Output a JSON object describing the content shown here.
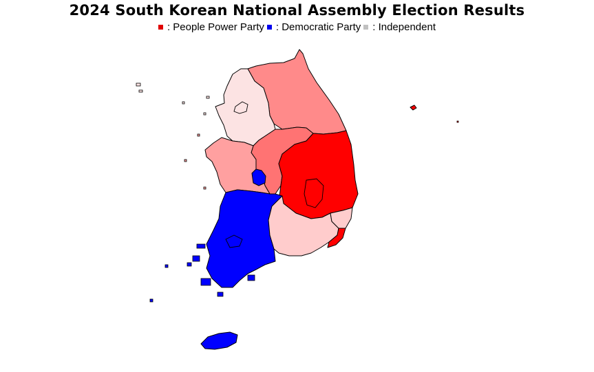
{
  "title": "2024 South Korean National Assembly Election Results",
  "legend": [
    {
      "label": ": People Power Party",
      "color": "#e00000"
    },
    {
      "label": ": Democratic Party",
      "color": "#0000ee"
    },
    {
      "label": ": Independent",
      "color": "#c0c0c0"
    }
  ],
  "colors": {
    "gangwon": "#ff8a8a",
    "gyeonggi": "#fce3e3",
    "chungbuk": "#ff7373",
    "gyeongbuk": "#ff0000",
    "chungnam": "#ffa0a0",
    "sejong_daejeon": "#0000ff",
    "jeolla": "#0000ff",
    "gyeongnam": "#ffcccc",
    "busan": "#ff0000",
    "ulsan": "#ffcdcd",
    "jeju": "#0000ff",
    "ulleung": "#ff0000"
  }
}
